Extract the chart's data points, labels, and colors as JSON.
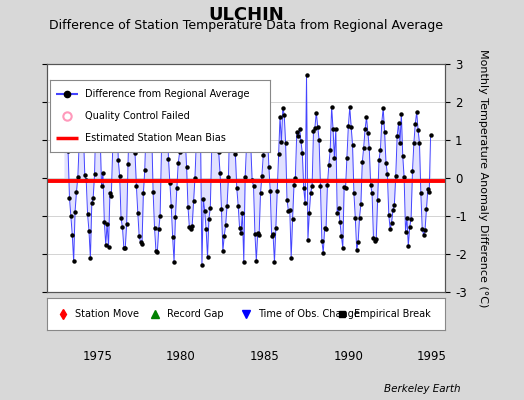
{
  "title": "ULCHIN",
  "subtitle": "Difference of Station Temperature Data from Regional Average",
  "ylabel": "Monthly Temperature Anomaly Difference (°C)",
  "xlabel_ticks": [
    1975,
    1980,
    1985,
    1990,
    1995
  ],
  "ylim": [
    -3,
    3
  ],
  "xlim": [
    1972.0,
    1995.8
  ],
  "bias_value": -0.07,
  "line_color": "#4444ff",
  "line_fill_color": "#aaaaff",
  "marker_color": "#000000",
  "bias_color": "#ff0000",
  "background_color": "#d8d8d8",
  "plot_bg_color": "#ffffff",
  "grid_color": "#cccccc",
  "watermark": "Berkeley Earth",
  "title_fontsize": 13,
  "subtitle_fontsize": 9,
  "ylabel_fontsize": 8,
  "tick_fontsize": 8.5
}
